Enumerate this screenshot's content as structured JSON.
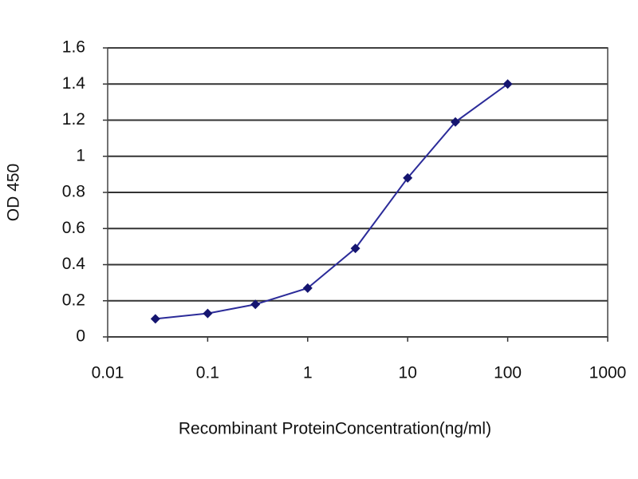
{
  "chart_data": {
    "type": "line",
    "x_label": "Recombinant ProteinConcentration(ng/ml)",
    "y_label": "OD 450",
    "x": [
      0.03,
      0.1,
      0.3,
      1,
      3,
      10,
      30,
      100
    ],
    "values": [
      0.1,
      0.13,
      0.18,
      0.27,
      0.49,
      0.88,
      1.19,
      1.4
    ],
    "color": "#2b2b99",
    "marker_color": "#151570",
    "xlog": true,
    "xlim": [
      0.01,
      1000
    ],
    "xticks": [
      0.01,
      0.1,
      1,
      10,
      100,
      1000
    ],
    "ylim": [
      0,
      1.6
    ],
    "yticks": [
      0,
      0.2,
      0.4,
      0.6,
      0.8,
      1,
      1.2,
      1.4,
      1.6
    ],
    "grid": true
  }
}
